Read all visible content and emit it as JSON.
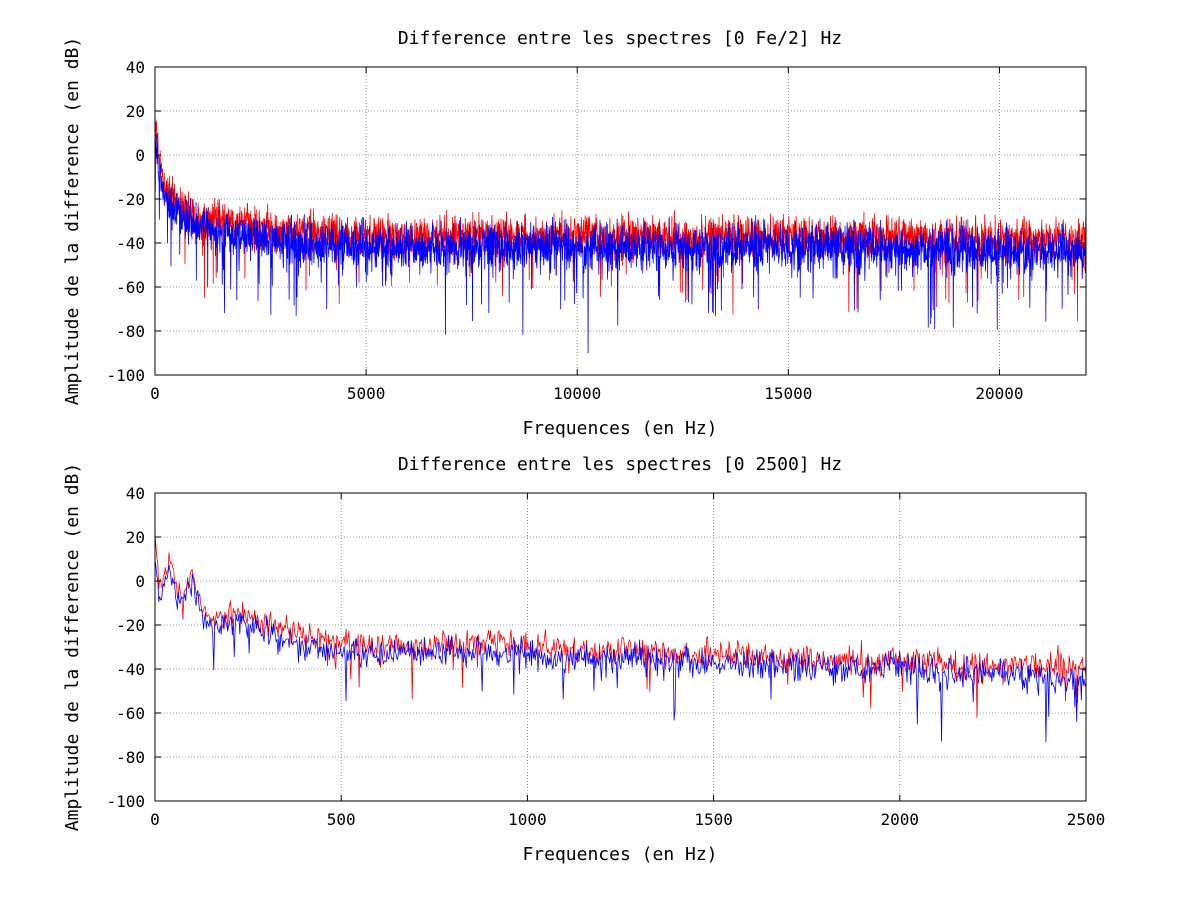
{
  "chart_data": [
    {
      "type": "line",
      "title": "Difference entre les spectres [0 Fe/2] Hz",
      "xlabel": "Frequences (en Hz)",
      "ylabel": "Amplitude de la difference (en dB)",
      "xlim": [
        0,
        22050
      ],
      "ylim": [
        -100,
        40
      ],
      "xticks": [
        0,
        5000,
        10000,
        15000,
        20000
      ],
      "yticks": [
        -100,
        -80,
        -60,
        -40,
        -20,
        0,
        20,
        40
      ],
      "grid": true,
      "series": [
        {
          "color": "#ff0000",
          "x": [
            0,
            50,
            100,
            150,
            200,
            300,
            400,
            500,
            750,
            1000,
            1500,
            2000,
            2500,
            3000,
            4000,
            5000,
            7500,
            10000,
            12500,
            15000,
            17500,
            20000,
            22050
          ],
          "y": [
            18,
            5,
            -3,
            -8,
            -12,
            -16,
            -20,
            -22,
            -25,
            -27,
            -30,
            -32,
            -34,
            -35,
            -36,
            -37,
            -37,
            -37,
            -37,
            -37,
            -38,
            -38,
            -38
          ],
          "spread": [
            8,
            8,
            8,
            8,
            8,
            9,
            9,
            9,
            9,
            10,
            10,
            10,
            10,
            10,
            10,
            10,
            10,
            10,
            10,
            10,
            10,
            10,
            10
          ]
        },
        {
          "color": "#0000ff",
          "x": [
            0,
            50,
            100,
            150,
            200,
            300,
            400,
            500,
            750,
            1000,
            1500,
            2000,
            2500,
            3000,
            4000,
            5000,
            7500,
            10000,
            12500,
            15000,
            17500,
            20000,
            22050
          ],
          "y": [
            10,
            0,
            -8,
            -13,
            -17,
            -21,
            -25,
            -27,
            -30,
            -32,
            -35,
            -37,
            -39,
            -40,
            -41,
            -42,
            -42,
            -42,
            -42,
            -42,
            -43,
            -43,
            -44
          ],
          "spread": [
            9,
            9,
            9,
            9,
            9,
            10,
            10,
            10,
            11,
            11,
            11,
            11,
            11,
            12,
            12,
            12,
            12,
            12,
            12,
            12,
            12,
            12,
            12
          ]
        }
      ]
    },
    {
      "type": "line",
      "title": "Difference entre les spectres [0 2500] Hz",
      "xlabel": "Frequences (en Hz)",
      "ylabel": "Amplitude de la difference (en dB)",
      "xlim": [
        0,
        2500
      ],
      "ylim": [
        -100,
        40
      ],
      "xticks": [
        0,
        500,
        1000,
        1500,
        2000,
        2500
      ],
      "yticks": [
        -100,
        -80,
        -60,
        -40,
        -20,
        0,
        20,
        40
      ],
      "grid": true,
      "series": [
        {
          "color": "#ff0000",
          "x": [
            0,
            10,
            20,
            30,
            40,
            60,
            80,
            100,
            120,
            140,
            160,
            200,
            250,
            300,
            350,
            400,
            450,
            500,
            600,
            700,
            800,
            900,
            1000,
            1100,
            1200,
            1300,
            1400,
            1500,
            1600,
            1700,
            1800,
            1900,
            2000,
            2100,
            2200,
            2300,
            2400,
            2500
          ],
          "y": [
            20,
            2,
            -4,
            5,
            10,
            -5,
            -8,
            5,
            -10,
            -15,
            -20,
            -14,
            -16,
            -20,
            -22,
            -24,
            -26,
            -27,
            -30,
            -30,
            -29,
            -28,
            -29,
            -32,
            -32,
            -31,
            -33,
            -33,
            -34,
            -35,
            -36,
            -37,
            -36,
            -37,
            -38,
            -38,
            -39,
            -39
          ],
          "spread": [
            4,
            4,
            4,
            5,
            5,
            5,
            5,
            5,
            5,
            5,
            6,
            6,
            6,
            6,
            6,
            7,
            7,
            7,
            7,
            7,
            7,
            7,
            7,
            7,
            7,
            7,
            7,
            7,
            7,
            7,
            8,
            8,
            8,
            8,
            8,
            8,
            8,
            8
          ]
        },
        {
          "color": "#0000ff",
          "x": [
            0,
            10,
            20,
            30,
            40,
            60,
            80,
            100,
            120,
            140,
            160,
            200,
            250,
            300,
            350,
            400,
            450,
            500,
            600,
            700,
            800,
            900,
            1000,
            1100,
            1200,
            1300,
            1400,
            1500,
            1600,
            1700,
            1800,
            1900,
            2000,
            2100,
            2200,
            2300,
            2400,
            2500
          ],
          "y": [
            10,
            -10,
            -3,
            0,
            5,
            -10,
            -8,
            0,
            -12,
            -18,
            -22,
            -17,
            -20,
            -24,
            -26,
            -30,
            -30,
            -32,
            -34,
            -33,
            -33,
            -32,
            -33,
            -36,
            -36,
            -35,
            -37,
            -37,
            -38,
            -39,
            -40,
            -40,
            -38,
            -42,
            -42,
            -42,
            -43,
            -44
          ],
          "spread": [
            5,
            5,
            5,
            5,
            5,
            5,
            6,
            6,
            6,
            6,
            6,
            6,
            7,
            7,
            7,
            7,
            7,
            7,
            7,
            7,
            7,
            7,
            7,
            7,
            7,
            8,
            8,
            8,
            8,
            8,
            8,
            8,
            8,
            8,
            8,
            8,
            8,
            8
          ]
        }
      ]
    }
  ]
}
